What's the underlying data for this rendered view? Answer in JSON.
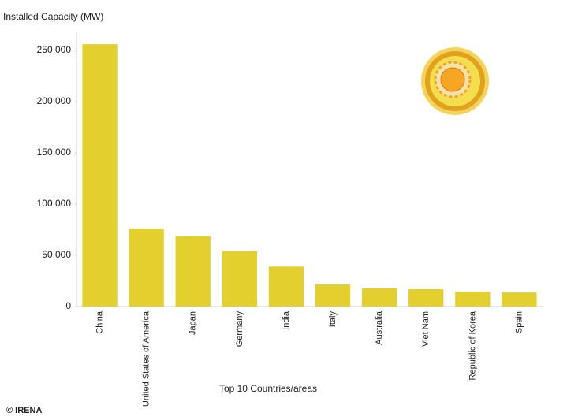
{
  "chart_data": {
    "type": "bar",
    "y_axis_label": "Installed Capacity (MW)",
    "x_axis_label": "Top 10 Countries/areas",
    "source": "© IRENA",
    "categories": [
      "China",
      "United States of America",
      "Japan",
      "Germany",
      "India",
      "Italy",
      "Australia",
      "Viet Nam",
      "Republic of Korea",
      "Spain"
    ],
    "values": [
      256000,
      76000,
      68500,
      54000,
      39000,
      21500,
      17700,
      16900,
      14600,
      13800
    ],
    "color": "#e3cf2e",
    "ylim": [
      0,
      268000
    ],
    "yticks": [
      0,
      {
        "value": 50000,
        "label": "50 000"
      },
      {
        "value": 100000,
        "label": "100 000"
      },
      {
        "value": 150000,
        "label": "150 000"
      },
      {
        "value": 200000,
        "label": "200 000"
      },
      {
        "value": 250000,
        "label": "250 000"
      }
    ]
  }
}
